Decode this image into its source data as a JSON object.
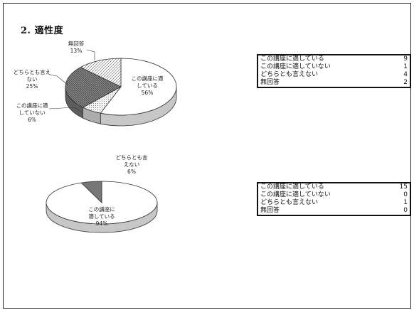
{
  "title": "2.  適性度",
  "chart_data": [
    {
      "type": "pie",
      "slices": [
        {
          "label": "この講座に適している",
          "count": 9,
          "percent": 56,
          "chart_label": [
            "この講座に適",
            "している",
            "56%"
          ],
          "fill": "#ffffff"
        },
        {
          "label": "この講座に適していない",
          "count": 1,
          "percent": 6,
          "chart_label": [
            "この講座に適",
            "していない",
            "6%"
          ],
          "fill": "#dddddd"
        },
        {
          "label": "どちらとも言えない",
          "count": 4,
          "percent": 25,
          "chart_label": [
            "どちらとも言え",
            "ない",
            "25%"
          ],
          "fill": "#777777"
        },
        {
          "label": "無回答",
          "count": 2,
          "percent": 13,
          "chart_label": [
            "無回答",
            "13%"
          ],
          "fill": "#bbbbbb"
        }
      ]
    },
    {
      "type": "pie",
      "slices": [
        {
          "label": "この講座に適している",
          "count": 15,
          "percent": 94,
          "chart_label": [
            "この講座に",
            "適している",
            "94%"
          ],
          "fill": "#ffffff"
        },
        {
          "label": "この講座に適していない",
          "count": 0,
          "percent": 0,
          "chart_label": [],
          "fill": "#dddddd"
        },
        {
          "label": "どちらとも言えない",
          "count": 1,
          "percent": 6,
          "chart_label": [
            "どちらとも言",
            "えない",
            "6%"
          ],
          "fill": "#777777"
        },
        {
          "label": "無回答",
          "count": 0,
          "percent": 0,
          "chart_label": [],
          "fill": "#bbbbbb"
        }
      ]
    }
  ],
  "tables": [
    {
      "rows": [
        {
          "label": "この講座に適している",
          "value": "9"
        },
        {
          "label": "この講座に適していない",
          "value": "1"
        },
        {
          "label": "どちらとも言えない",
          "value": "4"
        },
        {
          "label": "無回答",
          "value": "2"
        }
      ]
    },
    {
      "rows": [
        {
          "label": "この講座に適している",
          "value": "15"
        },
        {
          "label": "この講座に適していない",
          "value": "0"
        },
        {
          "label": "どちらとも言えない",
          "value": "1"
        },
        {
          "label": "無回答",
          "value": "0"
        }
      ]
    }
  ]
}
